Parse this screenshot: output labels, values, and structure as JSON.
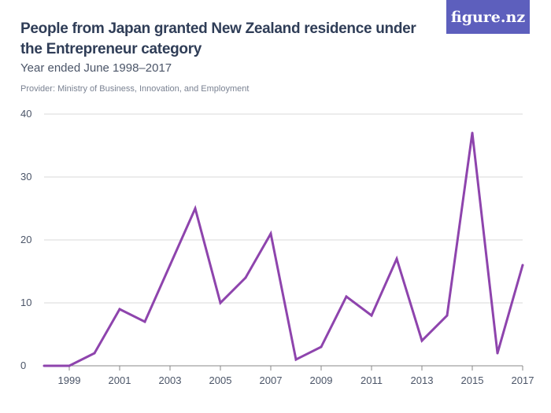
{
  "header": {
    "title": "People from Japan granted New Zealand residence under the Entrepreneur category",
    "subtitle": "Year ended June 1998–2017",
    "provider": "Provider: Ministry of Business, Innovation, and Employment",
    "logo_text": "figure.nz"
  },
  "colors": {
    "line": "#8e44ad",
    "grid": "#d9d9d9",
    "logo_bg": "#5d5fbd"
  },
  "chart_data": {
    "type": "line",
    "title": "People from Japan granted New Zealand residence under the Entrepreneur category",
    "subtitle": "Year ended June 1998–2017",
    "xlabel": "",
    "ylabel": "",
    "x": [
      1998,
      1999,
      2000,
      2001,
      2002,
      2003,
      2004,
      2005,
      2006,
      2007,
      2008,
      2009,
      2010,
      2011,
      2012,
      2013,
      2014,
      2015,
      2016,
      2017
    ],
    "series": [
      {
        "values": [
          0,
          0,
          2,
          9,
          7,
          16,
          25,
          10,
          14,
          21,
          1,
          3,
          11,
          8,
          17,
          4,
          8,
          37,
          2,
          16
        ]
      }
    ],
    "x_tick_labels": [
      "1999",
      "2001",
      "2003",
      "2005",
      "2007",
      "2009",
      "2011",
      "2013",
      "2015",
      "2017"
    ],
    "y_tick_labels": [
      "0",
      "10",
      "20",
      "30",
      "40"
    ],
    "ylim": [
      0,
      40
    ],
    "xlim": [
      1998,
      2017
    ],
    "grid": "horizontal",
    "legend": "none"
  }
}
